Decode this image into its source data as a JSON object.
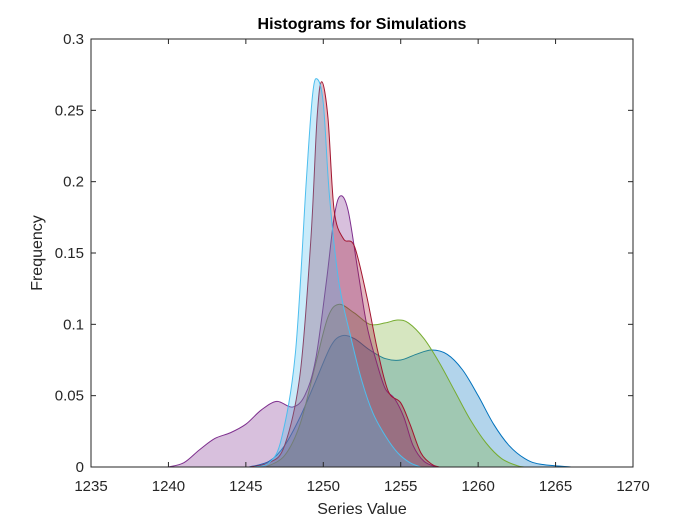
{
  "chart_data": {
    "type": "area",
    "title": "Histograms for Simulations",
    "xlabel": "Series Value",
    "ylabel": "Frequency",
    "xlim": [
      1235,
      1270
    ],
    "ylim": [
      0,
      0.3
    ],
    "xticks": [
      1235,
      1240,
      1245,
      1250,
      1255,
      1260,
      1265,
      1270
    ],
    "yticks": [
      0,
      0.05,
      0.1,
      0.15,
      0.2,
      0.25,
      0.3
    ],
    "xtick_labels": [
      "1235",
      "1240",
      "1245",
      "1250",
      "1255",
      "1260",
      "1265",
      "1270"
    ],
    "ytick_labels": [
      "0",
      "0.05",
      "0.1",
      "0.15",
      "0.2",
      "0.25",
      "0.3"
    ],
    "grid": false,
    "series": [
      {
        "color": "#0072BD",
        "points": [
          [
            1245.2,
            0
          ],
          [
            1246.5,
            0.004
          ],
          [
            1247.5,
            0.015
          ],
          [
            1248.5,
            0.035
          ],
          [
            1249.5,
            0.06
          ],
          [
            1250.5,
            0.085
          ],
          [
            1251.2,
            0.092
          ],
          [
            1252,
            0.09
          ],
          [
            1253,
            0.082
          ],
          [
            1254,
            0.076
          ],
          [
            1255,
            0.075
          ],
          [
            1256,
            0.079
          ],
          [
            1257,
            0.082
          ],
          [
            1258,
            0.079
          ],
          [
            1259,
            0.068
          ],
          [
            1260,
            0.05
          ],
          [
            1261,
            0.03
          ],
          [
            1262,
            0.015
          ],
          [
            1263,
            0.006
          ],
          [
            1264,
            0.002
          ],
          [
            1266,
            0
          ]
        ]
      },
      {
        "color": "#77AC30",
        "points": [
          [
            1246.3,
            0
          ],
          [
            1247.5,
            0.008
          ],
          [
            1248.5,
            0.03
          ],
          [
            1249.5,
            0.072
          ],
          [
            1250.3,
            0.105
          ],
          [
            1251,
            0.114
          ],
          [
            1252,
            0.108
          ],
          [
            1253,
            0.1
          ],
          [
            1254,
            0.101
          ],
          [
            1254.8,
            0.103
          ],
          [
            1255.5,
            0.101
          ],
          [
            1256.5,
            0.09
          ],
          [
            1257.5,
            0.073
          ],
          [
            1258.5,
            0.053
          ],
          [
            1259.5,
            0.033
          ],
          [
            1260.5,
            0.017
          ],
          [
            1261.5,
            0.006
          ],
          [
            1262.5,
            0.001
          ],
          [
            1263,
            0
          ]
        ]
      },
      {
        "color": "#7E2F8E",
        "points": [
          [
            1240,
            0
          ],
          [
            1241,
            0.003
          ],
          [
            1242,
            0.012
          ],
          [
            1243,
            0.02
          ],
          [
            1244,
            0.024
          ],
          [
            1245,
            0.03
          ],
          [
            1246,
            0.04
          ],
          [
            1247,
            0.046
          ],
          [
            1248,
            0.042
          ],
          [
            1248.8,
            0.05
          ],
          [
            1249.5,
            0.075
          ],
          [
            1250.2,
            0.13
          ],
          [
            1250.7,
            0.175
          ],
          [
            1251.1,
            0.19
          ],
          [
            1251.6,
            0.18
          ],
          [
            1252.2,
            0.14
          ],
          [
            1252.8,
            0.1
          ],
          [
            1253.4,
            0.075
          ],
          [
            1254,
            0.055
          ],
          [
            1254.6,
            0.048
          ],
          [
            1255.2,
            0.035
          ],
          [
            1255.8,
            0.015
          ],
          [
            1256.5,
            0.004
          ],
          [
            1257.3,
            0
          ]
        ]
      },
      {
        "color": "#A2142F",
        "points": [
          [
            1245.3,
            0
          ],
          [
            1246.5,
            0.003
          ],
          [
            1247.5,
            0.015
          ],
          [
            1248.5,
            0.065
          ],
          [
            1249.2,
            0.16
          ],
          [
            1249.6,
            0.245
          ],
          [
            1249.9,
            0.27
          ],
          [
            1250.3,
            0.245
          ],
          [
            1250.7,
            0.18
          ],
          [
            1251.3,
            0.16
          ],
          [
            1252,
            0.155
          ],
          [
            1252.8,
            0.12
          ],
          [
            1253.5,
            0.082
          ],
          [
            1254.2,
            0.053
          ],
          [
            1255,
            0.045
          ],
          [
            1255.6,
            0.03
          ],
          [
            1256.3,
            0.01
          ],
          [
            1257,
            0.002
          ],
          [
            1257.5,
            0
          ]
        ]
      },
      {
        "color": "#4DBEEE",
        "points": [
          [
            1245.5,
            0
          ],
          [
            1246.5,
            0.003
          ],
          [
            1247.3,
            0.02
          ],
          [
            1248.2,
            0.08
          ],
          [
            1248.9,
            0.2
          ],
          [
            1249.3,
            0.26
          ],
          [
            1249.6,
            0.272
          ],
          [
            1250,
            0.255
          ],
          [
            1250.4,
            0.19
          ],
          [
            1251,
            0.13
          ],
          [
            1251.8,
            0.09
          ],
          [
            1252.5,
            0.06
          ],
          [
            1253.2,
            0.038
          ],
          [
            1254,
            0.022
          ],
          [
            1254.8,
            0.01
          ],
          [
            1255.6,
            0.003
          ],
          [
            1256.3,
            0
          ]
        ]
      }
    ]
  }
}
